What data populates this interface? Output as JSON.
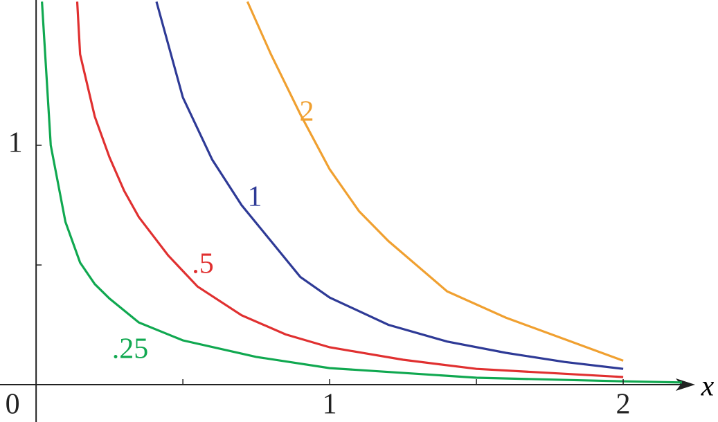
{
  "chart_data": {
    "type": "line",
    "x_label": "x",
    "xlim": [
      -0.123,
      2.323
    ],
    "ylim": [
      -0.156,
      1.607
    ],
    "xticks": [
      0,
      1,
      2
    ],
    "xminor": [
      0.5,
      1.5
    ],
    "yticks": [
      1
    ],
    "yminor": [
      0.5
    ],
    "series": [
      {
        "name": "2",
        "color": "#f0a030",
        "x": [
          0.72,
          0.8,
          0.9,
          1,
          1.1,
          1.2,
          1.4,
          1.6,
          1.8,
          2
        ],
        "values": [
          1.6,
          1.38,
          1.13,
          0.9,
          0.725,
          0.6,
          0.39,
          0.28,
          0.19,
          0.1
        ]
      },
      {
        "name": "1",
        "color": "#2e3a96",
        "x": [
          0.41,
          0.5,
          0.6,
          0.7,
          0.8,
          0.9,
          1,
          1.2,
          1.4,
          1.6,
          1.8,
          2
        ],
        "values": [
          1.6,
          1.2,
          0.94,
          0.75,
          0.6,
          0.45,
          0.364,
          0.25,
          0.18,
          0.133,
          0.095,
          0.066
        ]
      },
      {
        "name": ".5",
        "color": "#e03030",
        "x": [
          0.14,
          0.15,
          0.2,
          0.25,
          0.3,
          0.35,
          0.45,
          0.55,
          0.7,
          0.85,
          1,
          1.25,
          1.5,
          2
        ],
        "values": [
          1.6,
          1.38,
          1.12,
          0.95,
          0.81,
          0.7,
          0.54,
          0.41,
          0.29,
          0.21,
          0.156,
          0.104,
          0.066,
          0.032
        ]
      },
      {
        "name": ".25",
        "color": "#10a850",
        "x": [
          0.02,
          0.05,
          0.1,
          0.15,
          0.2,
          0.25,
          0.35,
          0.5,
          0.75,
          1,
          1.5,
          2,
          2.2
        ],
        "values": [
          1.6,
          1.0,
          0.68,
          0.51,
          0.42,
          0.36,
          0.26,
          0.185,
          0.116,
          0.069,
          0.029,
          0.014,
          0.009
        ]
      }
    ]
  }
}
